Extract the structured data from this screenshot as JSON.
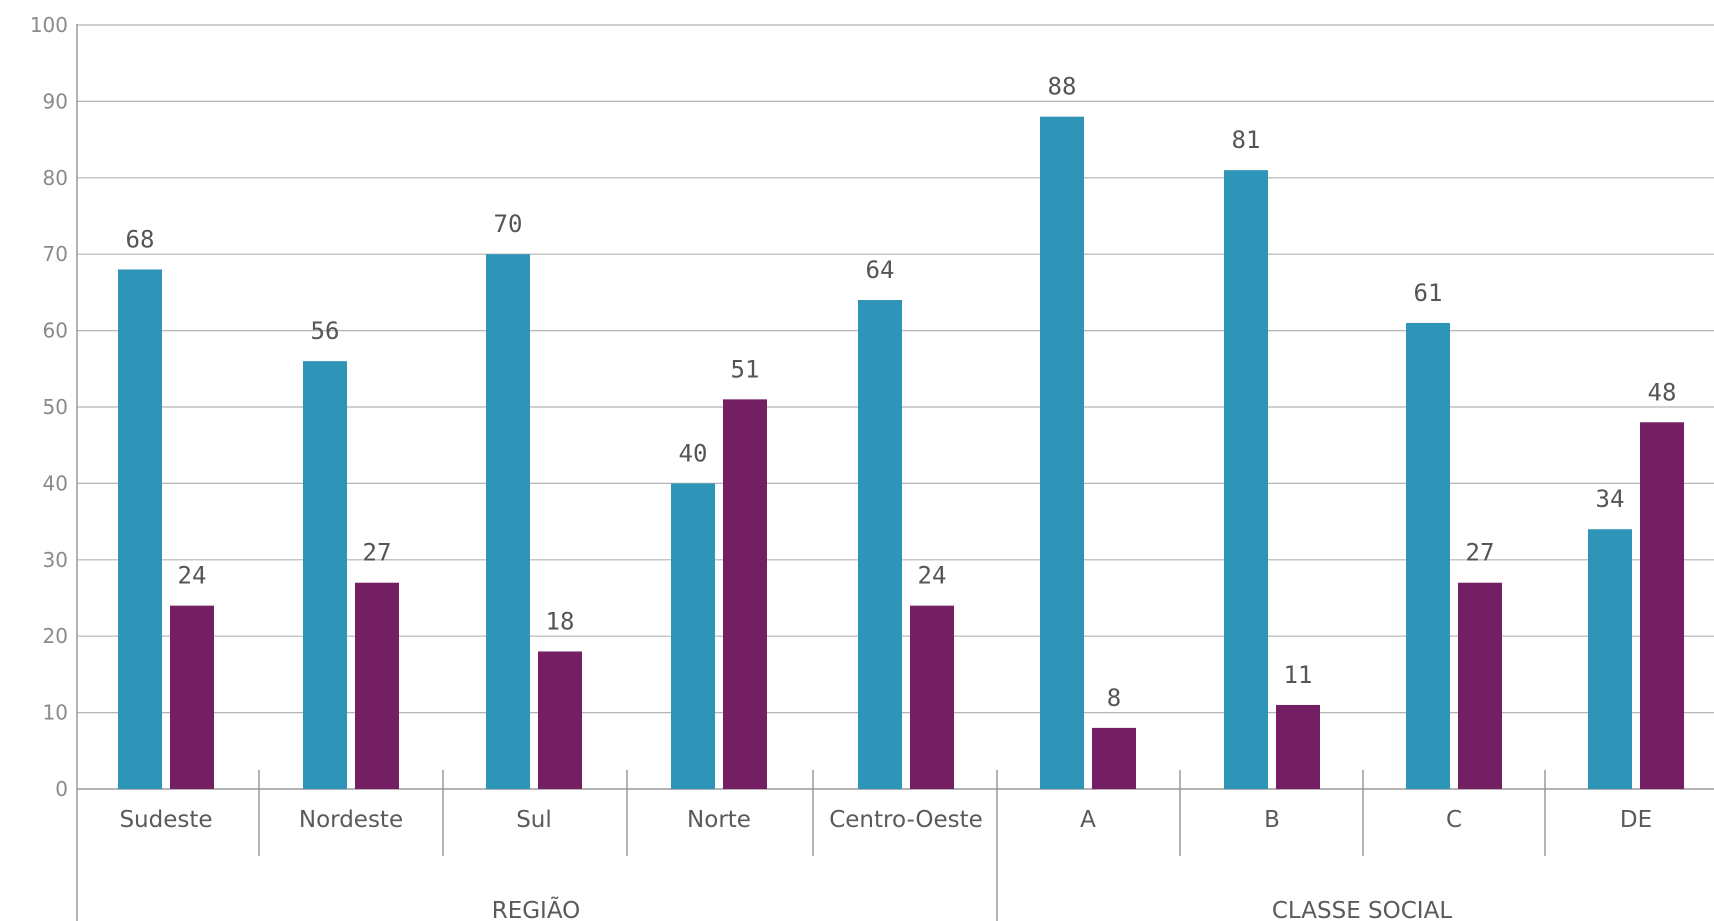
{
  "chart_data": {
    "type": "bar",
    "categories": [
      "Sudeste",
      "Nordeste",
      "Sul",
      "Norte",
      "Centro-Oeste",
      "A",
      "B",
      "C",
      "DE"
    ],
    "groups": [
      {
        "label": "REGIÃO",
        "categories": [
          "Sudeste",
          "Nordeste",
          "Sul",
          "Norte",
          "Centro-Oeste"
        ]
      },
      {
        "label": "CLASSE SOCIAL",
        "categories": [
          "A",
          "B",
          "C",
          "DE"
        ]
      }
    ],
    "series": [
      {
        "values": [
          68,
          56,
          70,
          40,
          64,
          88,
          81,
          61,
          34
        ],
        "color": "#2e95b8"
      },
      {
        "values": [
          24,
          27,
          18,
          51,
          24,
          8,
          11,
          27,
          48
        ],
        "color": "#741f63"
      }
    ],
    "data_labels": [
      [
        "68",
        "56",
        "70",
        "40",
        "64",
        "88",
        "81",
        "61",
        "34"
      ],
      [
        "24",
        "27",
        "18",
        "51",
        "24",
        "8",
        "11",
        "27",
        "48"
      ]
    ],
    "y_ticks": [
      "0",
      "10",
      "20",
      "30",
      "40",
      "50",
      "60",
      "70",
      "80",
      "90",
      "100"
    ],
    "ylim": [
      0,
      100
    ],
    "grid": true,
    "legend": "none",
    "title": "",
    "xlabel": "",
    "ylabel": ""
  }
}
